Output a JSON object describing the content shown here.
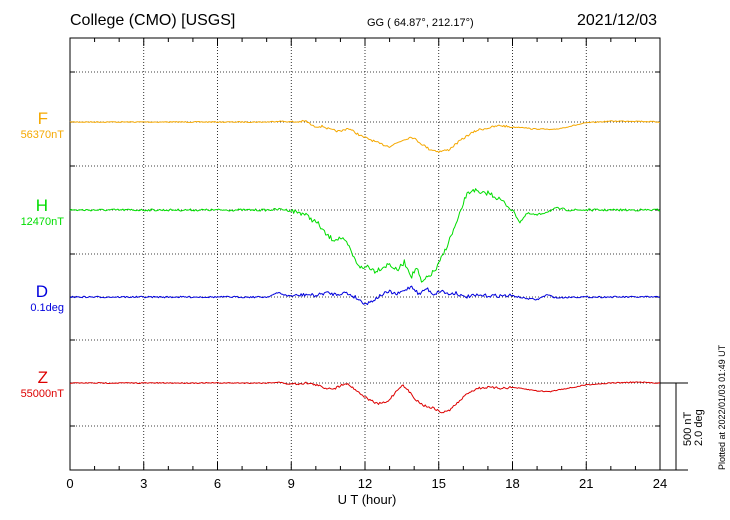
{
  "header": {
    "station": "College (CMO)  [USGS]",
    "coords": "GG ( 64.87°, 212.17°)",
    "date": "2021/12/03"
  },
  "footer": {
    "scale_nt": "500 nT",
    "scale_deg": "2.0 deg",
    "plotted": "Plotted at 2022/01/03 01:49 UT"
  },
  "colors": {
    "F": "#f5a800",
    "H": "#00dd00",
    "D": "#0000dd",
    "Z": "#dd0000",
    "grid": "#000000",
    "frame": "#000000"
  },
  "components": [
    {
      "key": "F",
      "label": "F",
      "baseline": "56370nT",
      "color": "#f5a800"
    },
    {
      "key": "H",
      "label": "H",
      "baseline": "12470nT",
      "color": "#00dd00"
    },
    {
      "key": "D",
      "label": "D",
      "baseline": "0.1deg",
      "color": "#0000dd"
    },
    {
      "key": "Z",
      "label": "Z",
      "baseline": "55000nT",
      "color": "#dd0000"
    }
  ],
  "chart_data": {
    "type": "line",
    "title": "College (CMO)  [USGS]",
    "xlabel": "U T (hour)",
    "ylabel": "",
    "xlim": [
      0,
      24
    ],
    "x_ticks": [
      0,
      3,
      6,
      9,
      12,
      15,
      18,
      21,
      24
    ],
    "grid": true,
    "scale": "500 nT / 2.0 deg",
    "series": [
      {
        "name": "F",
        "baseline": "56370nT",
        "x": [
          0,
          3,
          6,
          8,
          8.5,
          8.8,
          9.2,
          9.6,
          9.9,
          10.3,
          10.6,
          11,
          11.3,
          11.6,
          11.9,
          12.2,
          12.6,
          13,
          13.3,
          13.6,
          13.9,
          14.2,
          14.6,
          15,
          15.4,
          15.8,
          16.2,
          16.6,
          17,
          17.5,
          18,
          18.4,
          18.8,
          19.2,
          19.6,
          20,
          20.5,
          21,
          21.5,
          22,
          23,
          24
        ],
        "y": [
          0,
          0,
          0,
          0,
          5,
          2,
          0,
          5,
          -25,
          -25,
          -45,
          -55,
          -35,
          -60,
          -85,
          -100,
          -125,
          -140,
          -120,
          -100,
          -85,
          -115,
          -155,
          -170,
          -160,
          -115,
          -75,
          -45,
          -35,
          -20,
          -30,
          -30,
          -40,
          -40,
          -45,
          -35,
          -20,
          -5,
          0,
          5,
          5,
          0
        ]
      },
      {
        "name": "H",
        "baseline": "12470nT",
        "x": [
          0,
          3,
          6,
          8,
          8.6,
          9,
          9.5,
          9.8,
          10.1,
          10.4,
          10.7,
          11,
          11.3,
          11.6,
          11.9,
          12.1,
          12.4,
          12.7,
          13,
          13.3,
          13.6,
          13.9,
          14.1,
          14.3,
          14.6,
          14.9,
          15.2,
          15.5,
          15.8,
          16.1,
          16.4,
          16.7,
          17,
          17.5,
          18,
          18.3,
          18.6,
          19,
          19.4,
          19.8,
          20.3,
          21,
          22,
          23,
          24
        ],
        "y": [
          0,
          0,
          0,
          0,
          5,
          -5,
          -20,
          -50,
          -80,
          -140,
          -170,
          -160,
          -200,
          -290,
          -340,
          -320,
          -350,
          -330,
          -310,
          -350,
          -300,
          -380,
          -330,
          -420,
          -380,
          -340,
          -250,
          -150,
          -50,
          80,
          120,
          90,
          100,
          60,
          0,
          -70,
          -20,
          -30,
          -10,
          10,
          0,
          0,
          0,
          0,
          0
        ]
      },
      {
        "name": "D",
        "baseline": "0.1deg",
        "x": [
          0,
          3,
          6,
          8,
          8.5,
          8.8,
          9.2,
          9.6,
          10,
          10.4,
          10.8,
          11.2,
          11.6,
          11.9,
          12.1,
          12.4,
          12.7,
          13,
          13.3,
          13.6,
          13.9,
          14.2,
          14.5,
          14.8,
          15.1,
          15.4,
          15.7,
          16,
          16.5,
          17,
          17.5,
          18,
          18.5,
          19,
          19.4,
          19.8,
          20.5,
          21,
          22,
          23,
          24
        ],
        "y": [
          0,
          0,
          0,
          0,
          0.1,
          0.03,
          0.03,
          0.06,
          0.03,
          0.1,
          0.06,
          0.1,
          0,
          -0.12,
          -0.15,
          -0.05,
          0.06,
          0.12,
          0.06,
          0.15,
          0.25,
          0.06,
          0.2,
          0.06,
          0.15,
          0.06,
          0.1,
          0,
          0.03,
          0.03,
          0.03,
          0.03,
          -0.03,
          -0.06,
          0.05,
          -0.02,
          0,
          0,
          0,
          0,
          0
        ]
      },
      {
        "name": "Z",
        "baseline": "55000nT",
        "x": [
          0,
          3,
          6,
          8,
          8.5,
          8.8,
          9.2,
          9.6,
          10,
          10.4,
          10.8,
          11.2,
          11.5,
          11.8,
          12.1,
          12.5,
          12.9,
          13.2,
          13.5,
          13.8,
          14.1,
          14.4,
          14.8,
          15.1,
          15.4,
          15.8,
          16.2,
          16.6,
          17,
          17.5,
          18,
          18.5,
          19,
          19.5,
          20,
          20.5,
          21,
          21.5,
          22,
          23,
          24
        ],
        "y": [
          0,
          0,
          0,
          0,
          5,
          -5,
          -5,
          0,
          -10,
          -30,
          -30,
          0,
          -25,
          -60,
          -90,
          -120,
          -110,
          -60,
          -10,
          -50,
          -100,
          -130,
          -145,
          -170,
          -160,
          -110,
          -55,
          -30,
          -25,
          -30,
          -25,
          -35,
          -45,
          -50,
          -35,
          -25,
          -10,
          -5,
          0,
          5,
          0
        ]
      }
    ]
  }
}
